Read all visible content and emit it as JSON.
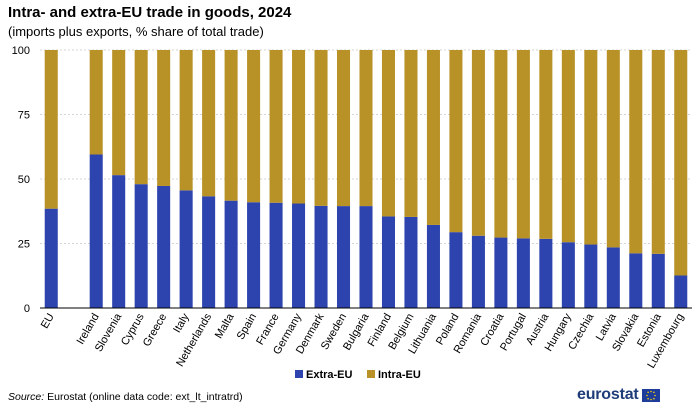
{
  "header": {
    "title": "Intra- and extra-EU trade in goods, 2024",
    "subtitle": "(imports plus exports, % share of total trade)"
  },
  "source": {
    "label": "Source:",
    "text": "Eurostat (online data code: ext_lt_intratrd)"
  },
  "logo": {
    "text": "eurostat"
  },
  "chart_data": {
    "type": "bar",
    "stacked": true,
    "title": "Intra- and extra-EU trade in goods, 2024",
    "subtitle": "(imports plus exports, % share of total trade)",
    "categories": [
      "EU",
      "",
      "Ireland",
      "Slovenia",
      "Cyprus",
      "Greece",
      "Italy",
      "Netherlands",
      "Malta",
      "Spain",
      "France",
      "Germany",
      "Denmark",
      "Sweden",
      "Bulgaria",
      "Finland",
      "Belgium",
      "Lithuania",
      "Poland",
      "Romania",
      "Croatia",
      "Portugal",
      "Austria",
      "Hungary",
      "Czechia",
      "Latvia",
      "Slovakia",
      "Estonia",
      "Luxembourg"
    ],
    "series": [
      {
        "name": "Extra-EU",
        "color": "#2d43ad",
        "values": [
          38.5,
          null,
          59.5,
          51.5,
          48,
          47.3,
          45.6,
          43.3,
          41.6,
          41,
          40.8,
          40.5,
          39.6,
          39.5,
          39.5,
          35.5,
          35.3,
          32.2,
          29.4,
          28,
          27.3,
          27,
          26.8,
          25.5,
          24.6,
          23.5,
          21.2,
          21,
          12.6
        ]
      },
      {
        "name": "Intra-EU",
        "color": "#b89227",
        "values": [
          61.5,
          null,
          40.5,
          48.5,
          52,
          52.7,
          54.4,
          56.7,
          58.4,
          59,
          59.2,
          59.5,
          60.4,
          60.5,
          60.5,
          64.5,
          64.7,
          67.8,
          70.6,
          72,
          72.7,
          73,
          73.2,
          74.5,
          75.4,
          76.5,
          78.8,
          79,
          87.4
        ]
      }
    ],
    "ylim": [
      0,
      100
    ],
    "yticks": [
      0,
      25,
      50,
      75,
      100
    ],
    "xlabel": "",
    "ylabel": "",
    "grid": true,
    "legend": "bottom-center"
  }
}
